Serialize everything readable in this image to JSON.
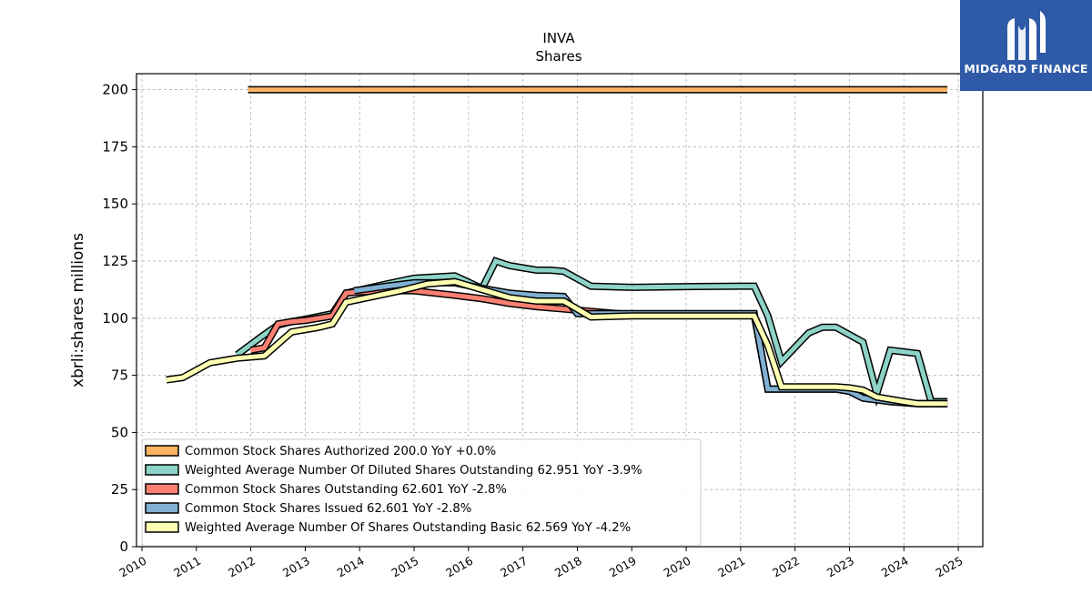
{
  "logo": {
    "text": "MIDGARD FINANCE",
    "background": "#2f5aa8"
  },
  "chart_data": {
    "type": "line",
    "title": "INVA",
    "subtitle": "Shares",
    "ylabel": "xbrli:shares millions",
    "xlabel": "",
    "xlim": [
      2009.9,
      2025.45
    ],
    "ylim": [
      0,
      207
    ],
    "x_ticks": [
      2010,
      2011,
      2012,
      2013,
      2014,
      2015,
      2016,
      2017,
      2018,
      2019,
      2020,
      2021,
      2022,
      2023,
      2024,
      2025
    ],
    "y_ticks": [
      0,
      25,
      50,
      75,
      100,
      125,
      150,
      175,
      200
    ],
    "grid": true,
    "legend_position": "lower-left",
    "series": [
      {
        "name": "Common Stock Shares Authorized  200.0 YoY +0.0%",
        "color": "#fdb462",
        "x": [
          2011.95,
          2024.8
        ],
        "y": [
          200,
          200
        ]
      },
      {
        "name": "Weighted Average Number Of Diluted Shares Outstanding  62.951 YoY -3.9%",
        "color": "#8dd3c7",
        "x": [
          2011.75,
          2012.2,
          2012.5,
          2012.75,
          2013.0,
          2013.5,
          2013.75,
          2014.5,
          2015.0,
          2015.75,
          2016.25,
          2016.5,
          2016.75,
          2017.25,
          2017.5,
          2017.75,
          2018.25,
          2019.0,
          2020.0,
          2021.0,
          2021.25,
          2021.5,
          2021.75,
          2022.25,
          2022.5,
          2022.75,
          2023.25,
          2023.5,
          2023.75,
          2024.25,
          2024.5,
          2024.8
        ],
        "y": [
          84,
          92,
          97,
          98.5,
          99.5,
          102,
          111,
          115,
          117.5,
          118.5,
          113,
          125,
          123,
          121,
          121,
          120.5,
          114,
          113.5,
          113.8,
          114,
          114,
          101,
          81,
          93.5,
          96,
          96,
          89.5,
          67,
          86,
          84.5,
          63.5,
          63.5
        ]
      },
      {
        "name": "Common Stock Shares Outstanding  62.601 YoY -2.8%",
        "color": "#fb8072",
        "x": [
          2012.0,
          2012.25,
          2012.5,
          2012.75,
          2013.0,
          2013.5,
          2013.75,
          2014.0,
          2014.5,
          2015.0,
          2015.75,
          2016.25,
          2016.75,
          2017.25,
          2017.75,
          2018.25,
          2019.0,
          2020.0,
          2021.0,
          2021.25,
          2021.5,
          2021.75,
          2022.25,
          2022.75,
          2023.0,
          2023.25,
          2023.75,
          2024.25,
          2024.8
        ],
        "y": [
          86,
          87,
          97.5,
          98.5,
          99,
          101,
          111,
          111.5,
          112,
          112,
          110,
          108.5,
          106.5,
          105,
          104,
          103,
          101.5,
          101.5,
          101.5,
          101.5,
          69,
          69,
          69,
          69,
          68,
          65.5,
          63.5,
          62.6,
          62.6
        ]
      },
      {
        "name": "Common Stock Shares Issued  62.601 YoY -2.8%",
        "color": "#80b1d3",
        "x": [
          2013.9,
          2014.5,
          2015.0,
          2015.75,
          2016.25,
          2016.75,
          2017.25,
          2017.75,
          2018.0,
          2019.0,
          2020.0,
          2021.0,
          2021.25,
          2021.5,
          2021.75,
          2022.25,
          2022.75,
          2023.0,
          2023.25,
          2023.75,
          2024.25,
          2024.8
        ],
        "y": [
          112,
          114,
          115.5,
          115.5,
          113,
          111,
          110,
          109.5,
          102,
          102,
          102,
          102,
          102,
          69,
          69,
          69,
          69,
          68,
          65,
          63.5,
          62.6,
          62.6
        ]
      },
      {
        "name": "Weighted Average Number Of Shares Outstanding Basic  62.569 YoY -4.2%",
        "color": "#ffffb3",
        "x": [
          2010.45,
          2010.75,
          2011.25,
          2011.75,
          2012.25,
          2012.75,
          2013.25,
          2013.5,
          2013.75,
          2014.25,
          2014.75,
          2015.25,
          2015.75,
          2016.25,
          2016.75,
          2017.25,
          2017.75,
          2018.25,
          2019.0,
          2020.0,
          2021.0,
          2021.25,
          2021.5,
          2021.75,
          2022.25,
          2022.75,
          2023.0,
          2023.25,
          2023.5,
          2024.0,
          2024.25,
          2024.8
        ],
        "y": [
          73,
          74,
          80.5,
          82.5,
          83.5,
          94,
          96,
          97.5,
          107,
          109.5,
          112,
          115,
          116,
          112.5,
          109,
          107.5,
          107.5,
          100.5,
          101,
          101,
          101,
          101,
          88,
          70,
          70,
          70,
          69.5,
          68.5,
          65.5,
          63.5,
          62.6,
          62.6
        ]
      }
    ]
  }
}
